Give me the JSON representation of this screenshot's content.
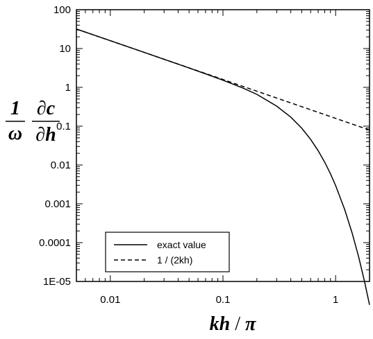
{
  "chart_data": {
    "type": "line",
    "xscale": "log",
    "yscale": "log",
    "xlim": [
      0.005,
      2
    ],
    "ylim": [
      1e-05,
      100
    ],
    "x_ticks": [
      {
        "value": 0.01,
        "label": "0.01"
      },
      {
        "value": 0.1,
        "label": "0.1"
      },
      {
        "value": 1,
        "label": "1"
      }
    ],
    "y_ticks": [
      {
        "value": 100,
        "label": "100"
      },
      {
        "value": 10,
        "label": "10"
      },
      {
        "value": 1,
        "label": "1"
      },
      {
        "value": 0.1,
        "label": "0.1"
      },
      {
        "value": 0.01,
        "label": "0.01"
      },
      {
        "value": 0.001,
        "label": "0.001"
      },
      {
        "value": 0.0001,
        "label": "0.0001"
      },
      {
        "value": 1e-05,
        "label": "1E-05"
      }
    ],
    "xlabel": {
      "main": "kh",
      "sep": " / ",
      "sym": "π"
    },
    "ylabel": {
      "frac1_num": "1",
      "frac1_den": "ω",
      "frac2_num": "∂c",
      "frac2_den": "∂h"
    },
    "legend": {
      "position": "bottom-left"
    },
    "series": [
      {
        "name": "exact value",
        "style": "solid",
        "x": [
          0.005,
          0.007,
          0.01,
          0.015,
          0.02,
          0.03,
          0.05,
          0.07,
          0.1,
          0.15,
          0.2,
          0.3,
          0.4,
          0.5,
          0.6,
          0.7,
          0.8,
          0.9,
          1.0,
          1.2,
          1.4,
          1.6,
          1.8,
          2.0
        ],
        "y": [
          31.8,
          22.7,
          15.9,
          10.6,
          7.95,
          5.28,
          3.15,
          2.23,
          1.53,
          0.964,
          0.66,
          0.328,
          0.171,
          0.0889,
          0.0457,
          0.0233,
          0.0118,
          0.00593,
          0.00296,
          0.000732,
          0.000179,
          4.33e-05,
          1.04e-05,
          2.5e-06
        ]
      },
      {
        "name": "1 / (2kh)",
        "style": "dashed",
        "x": [
          0.005,
          0.01,
          0.1,
          1,
          2
        ],
        "y": [
          31.83,
          15.92,
          1.592,
          0.159,
          0.0796
        ]
      }
    ]
  }
}
